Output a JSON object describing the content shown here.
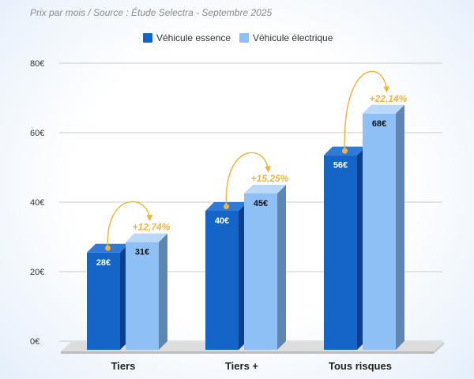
{
  "chart_data": {
    "type": "bar",
    "bar_style": "3d",
    "title": "Prix par mois / Source : Étude Selectra - Septembre 2025",
    "categories": [
      "Tiers",
      "Tiers +",
      "Tous risques"
    ],
    "series": [
      {
        "name": "Véhicule essence",
        "values": [
          28,
          40,
          56
        ],
        "data_labels": [
          "28€",
          "40€",
          "56€"
        ],
        "color": "#1565c8",
        "top_color": "#2f7ad6",
        "side_color": "#0c3f8e",
        "label_color": "#ffffff"
      },
      {
        "name": "Véhicule électrique",
        "values": [
          31,
          45,
          68
        ],
        "data_labels": [
          "31€",
          "45€",
          "68€"
        ],
        "color": "#8ec0f6",
        "top_color": "#b9d8fa",
        "side_color": "#5f86b2",
        "label_color": "#111111"
      }
    ],
    "annotations": [
      "+12,74%",
      "+15,25%",
      "+22,14%"
    ],
    "annotation_color": "#f2b43c",
    "ylim": [
      0,
      80
    ],
    "yticks": [
      0,
      20,
      40,
      60,
      80
    ],
    "ytick_labels": [
      "0€",
      "20€",
      "40€",
      "60€",
      "80€"
    ],
    "grid": true,
    "legend_position": "top"
  }
}
